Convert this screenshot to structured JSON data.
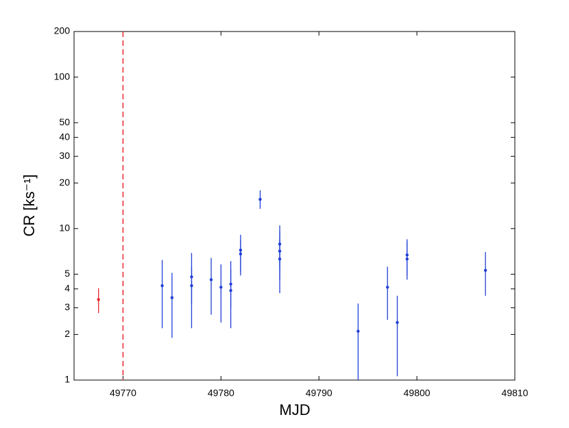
{
  "chart_data": {
    "type": "scatter",
    "xlabel": "MJD",
    "ylabel": "CR [ks⁻¹]",
    "xlim": [
      49765,
      49810
    ],
    "xticks": [
      49770,
      49780,
      49790,
      49800,
      49810
    ],
    "ylim": [
      1,
      200
    ],
    "yticks": [
      1,
      2,
      3,
      4,
      5,
      10,
      20,
      30,
      40,
      50,
      100,
      200
    ],
    "yscale": "log",
    "vline": {
      "x": 49770,
      "color": "#e8262b"
    },
    "series": [
      {
        "color": "#e8262b",
        "x": [
          49767.5
        ],
        "values": [
          3.4
        ],
        "low": [
          2.77
        ],
        "high": [
          4.04
        ]
      },
      {
        "color": "#1f3fd6",
        "x": [
          49774,
          49775,
          49777,
          49777,
          49779,
          49780,
          49781,
          49781,
          49782,
          49782,
          49784,
          49786,
          49786,
          49786,
          49794,
          49797,
          49798,
          49799,
          49799,
          49807
        ],
        "values": [
          4.2,
          3.5,
          4.8,
          4.2,
          4.6,
          4.1,
          4.3,
          3.9,
          7.2,
          6.8,
          15.6,
          7.9,
          7.1,
          6.3,
          2.1,
          4.1,
          2.4,
          6.7,
          6.3,
          5.3
        ],
        "low": [
          2.2,
          1.9,
          3.2,
          2.2,
          2.7,
          2.4,
          3.0,
          2.2,
          5.2,
          4.9,
          13.5,
          5.4,
          4.6,
          3.75,
          1,
          2.5,
          1.06,
          4.9,
          4.6,
          3.6
        ],
        "high": [
          6.2,
          5.1,
          6.9,
          5.6,
          6.4,
          5.8,
          6.1,
          5.4,
          9.1,
          8.4,
          17.9,
          10.5,
          9.6,
          8.6,
          3.2,
          5.6,
          3.6,
          8.5,
          8.1,
          7.0
        ]
      }
    ]
  }
}
